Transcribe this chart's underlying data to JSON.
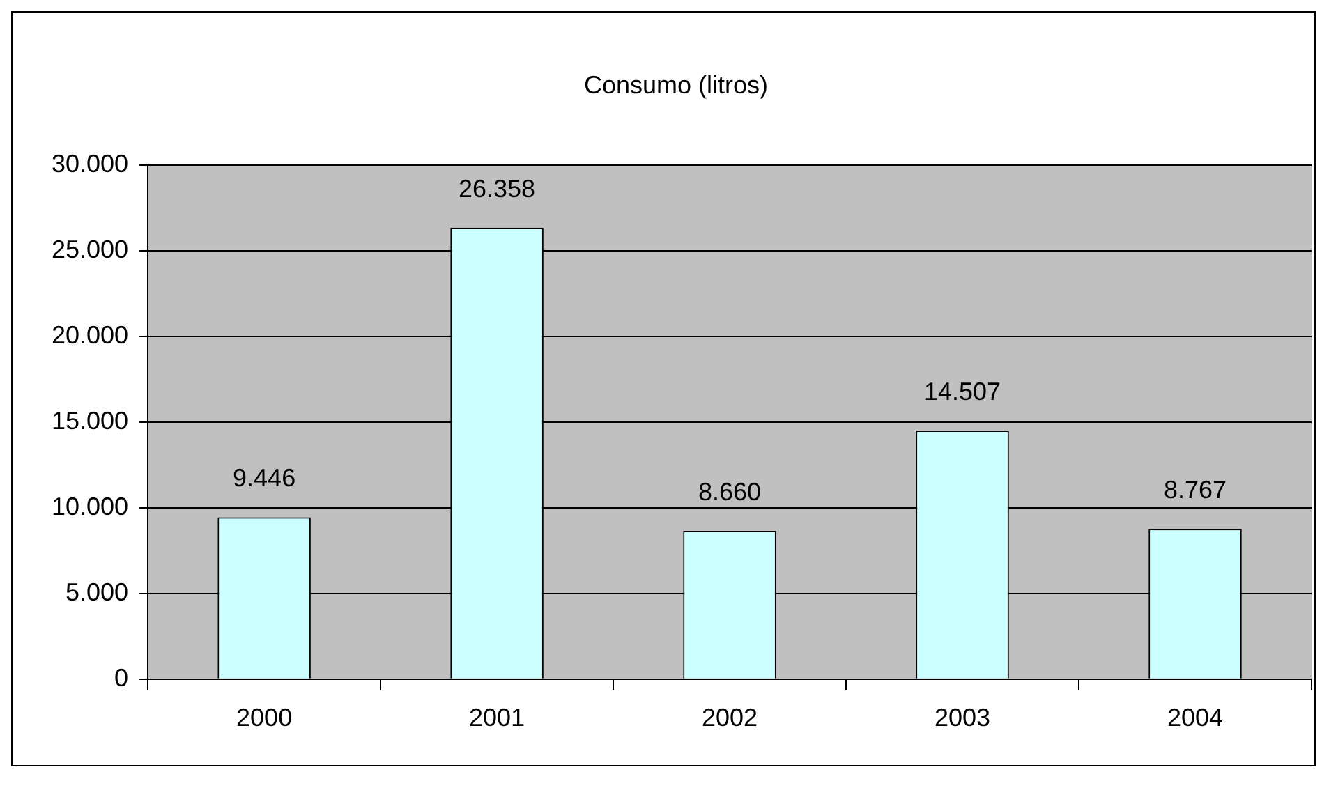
{
  "chart_data": {
    "type": "bar",
    "title": "Consumo (litros)",
    "categories": [
      "2000",
      "2001",
      "2002",
      "2003",
      "2004"
    ],
    "values": [
      9446,
      26358,
      8660,
      14507,
      8767
    ],
    "value_labels": [
      "9.446",
      "26.358",
      "8.660",
      "14.507",
      "8.767"
    ],
    "color": "#ccffff",
    "ylim": [
      0,
      30000
    ],
    "yticks": [
      {
        "value": 0,
        "label": "0"
      },
      {
        "value": 5000,
        "label": "5.000"
      },
      {
        "value": 10000,
        "label": "10.000"
      },
      {
        "value": 15000,
        "label": "15.000"
      },
      {
        "value": 20000,
        "label": "20.000"
      },
      {
        "value": 25000,
        "label": "25.000"
      },
      {
        "value": 30000,
        "label": "30.000"
      }
    ],
    "grid": "y",
    "legend": false
  }
}
